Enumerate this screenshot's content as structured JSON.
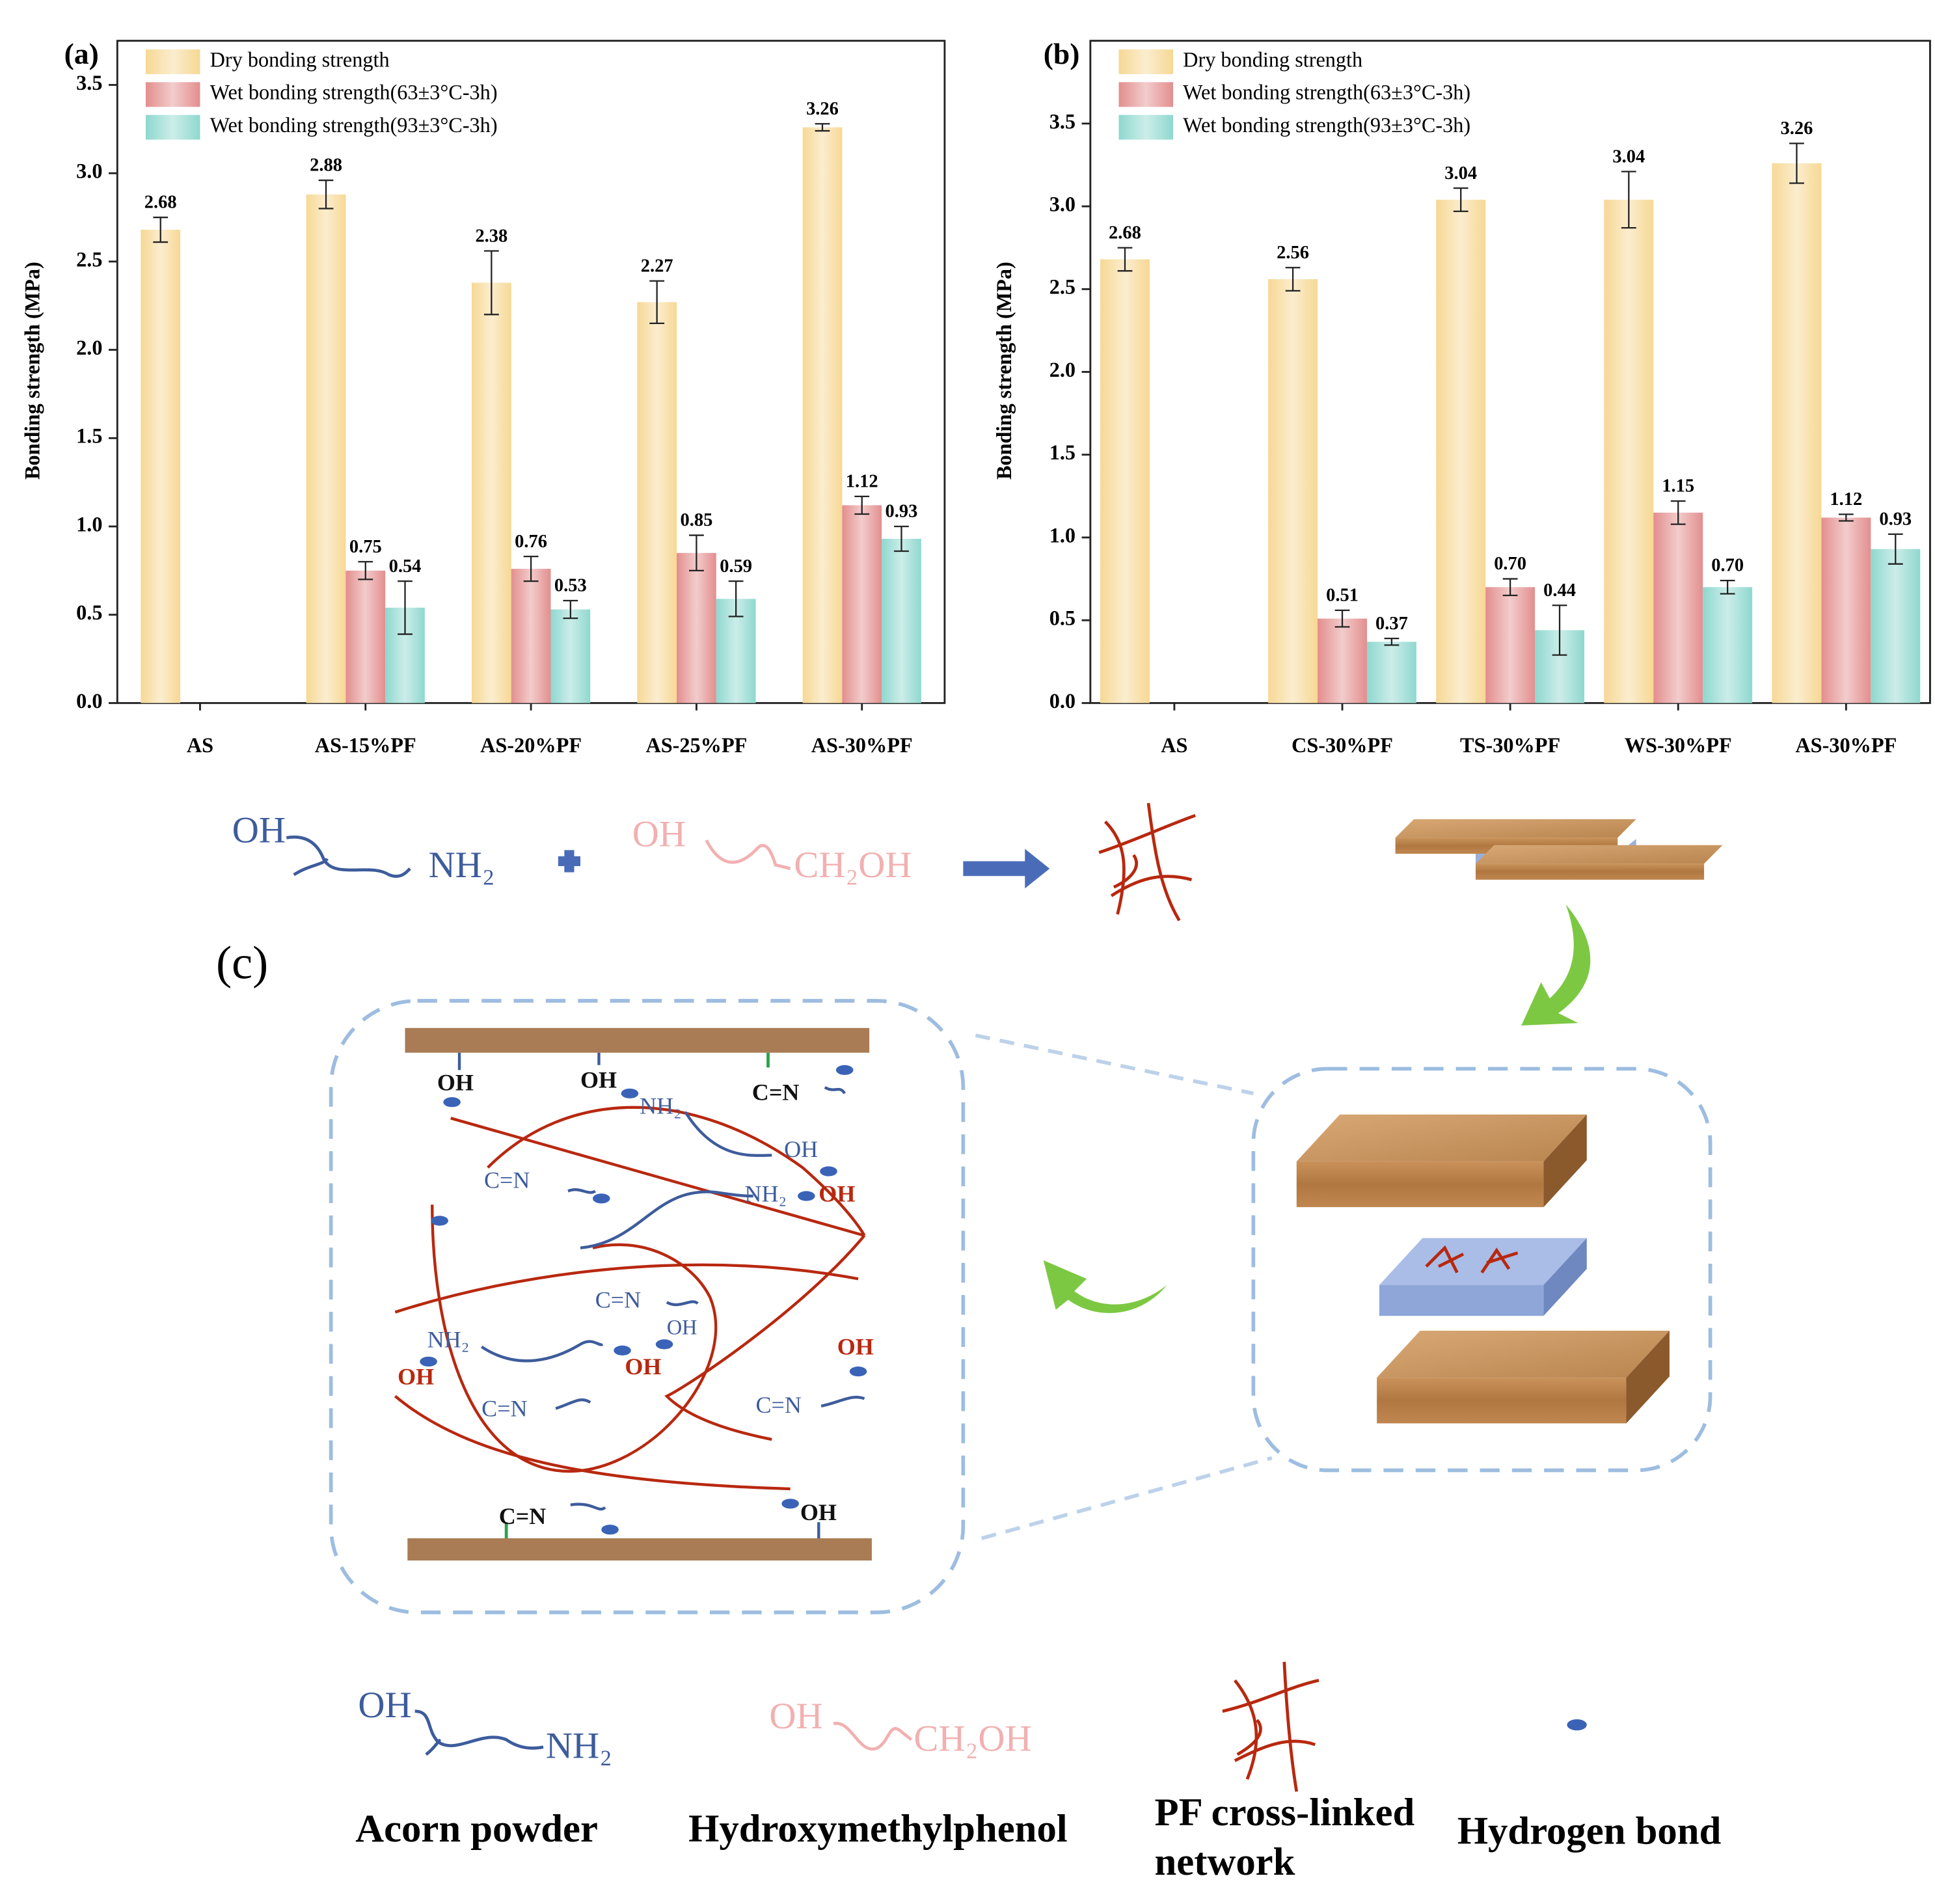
{
  "chart_data": [
    {
      "type": "bar",
      "panel_label": "(a)",
      "ylabel": "Bonding strength (MPa)",
      "categories": [
        "AS",
        "AS-15%PF",
        "AS-20%PF",
        "AS-25%PF",
        "AS-30%PF"
      ],
      "series": [
        {
          "name": "Dry bonding strength",
          "color": "#f7d894",
          "values": [
            2.68,
            2.88,
            2.38,
            2.27,
            3.26
          ],
          "errors": [
            0.07,
            0.08,
            0.18,
            0.12,
            0.02
          ],
          "value_labels": [
            "2.68",
            "2.88",
            "2.38",
            "2.27",
            "3.26"
          ]
        },
        {
          "name": "Wet bonding strength(63±3°C-3h)",
          "color": "#e38e8e",
          "values": [
            null,
            0.75,
            0.76,
            0.85,
            1.12
          ],
          "errors": [
            null,
            0.05,
            0.07,
            0.1,
            0.05
          ],
          "value_labels": [
            null,
            "0.75",
            "0.76",
            "0.85",
            "1.12"
          ]
        },
        {
          "name": "Wet bonding strength(93±3°C-3h)",
          "color": "#8ed8cf",
          "values": [
            null,
            0.54,
            0.53,
            0.59,
            0.93
          ],
          "errors": [
            null,
            0.15,
            0.05,
            0.1,
            0.07
          ],
          "value_labels": [
            null,
            "0.54",
            "0.53",
            "0.59",
            "0.93"
          ]
        }
      ],
      "ylim": [
        0,
        3.75
      ],
      "yticks": [
        {
          "value": 0,
          "label": "0.0"
        },
        0.5,
        {
          "value": 1,
          "label": "1.0"
        },
        1.5,
        {
          "value": 2,
          "label": "2.0"
        },
        2.5,
        {
          "value": 3,
          "label": "3.0"
        },
        3.5
      ],
      "grid": false,
      "legend": "upper left"
    },
    {
      "type": "bar",
      "panel_label": "(b)",
      "ylabel": "Bonding strength (MPa)",
      "categories": [
        "AS",
        "CS-30%PF",
        "TS-30%PF",
        "WS-30%PF",
        "AS-30%PF"
      ],
      "series": [
        {
          "name": "Dry bonding strength",
          "color": "#f7d894",
          "values": [
            2.68,
            2.56,
            3.04,
            3.04,
            3.26
          ],
          "errors": [
            0.07,
            0.07,
            0.07,
            0.17,
            0.12
          ],
          "value_labels": [
            "2.68",
            "2.56",
            "3.04",
            "3.04",
            "3.26"
          ]
        },
        {
          "name": "Wet bonding strength(63±3°C-3h)",
          "color": "#e38e8e",
          "values": [
            null,
            0.51,
            0.7,
            1.15,
            1.12
          ],
          "errors": [
            null,
            0.05,
            0.05,
            0.07,
            0.02
          ],
          "value_labels": [
            null,
            "0.51",
            "0.70",
            "1.15",
            "1.12"
          ]
        },
        {
          "name": "Wet bonding strength(93±3°C-3h)",
          "color": "#8ed8cf",
          "values": [
            null,
            0.37,
            0.44,
            0.7,
            0.93
          ],
          "errors": [
            null,
            0.02,
            0.15,
            0.04,
            0.09
          ],
          "value_labels": [
            null,
            "0.37",
            "0.44",
            "0.70",
            "0.93"
          ]
        }
      ],
      "ylim": [
        0,
        4
      ],
      "yticks": [
        {
          "value": 0,
          "label": "0.0"
        },
        0.5,
        {
          "value": 1,
          "label": "1.0"
        },
        1.5,
        {
          "value": 2,
          "label": "2.0"
        },
        2.5,
        {
          "value": 3,
          "label": "3.0"
        },
        3.5
      ],
      "grid": false,
      "legend": "upper left"
    }
  ],
  "diagram": {
    "label": "(c)",
    "reaction": {
      "acorn": [
        "OH",
        "NH₂"
      ],
      "phenol": [
        "OH",
        "CH₂OH"
      ]
    },
    "mechanism_labels": [
      "OH",
      "OH",
      "C=N",
      "NH₂",
      "OH",
      "C=N",
      "NH₂",
      "OH",
      "C=N",
      "OH",
      "NH₂",
      "OH",
      "OH",
      "OH",
      "C=N",
      "C=N",
      "C=N",
      "OH"
    ],
    "legend": [
      {
        "symbol": [
          "OH",
          "NH₂"
        ],
        "label": "Acorn powder"
      },
      {
        "symbol": [
          "OH",
          "CH₂OH"
        ],
        "label": "Hydroxymethylphenol"
      },
      {
        "label": [
          "PF cross-linked",
          "network"
        ]
      },
      {
        "label": "Hydrogen bond"
      }
    ]
  }
}
